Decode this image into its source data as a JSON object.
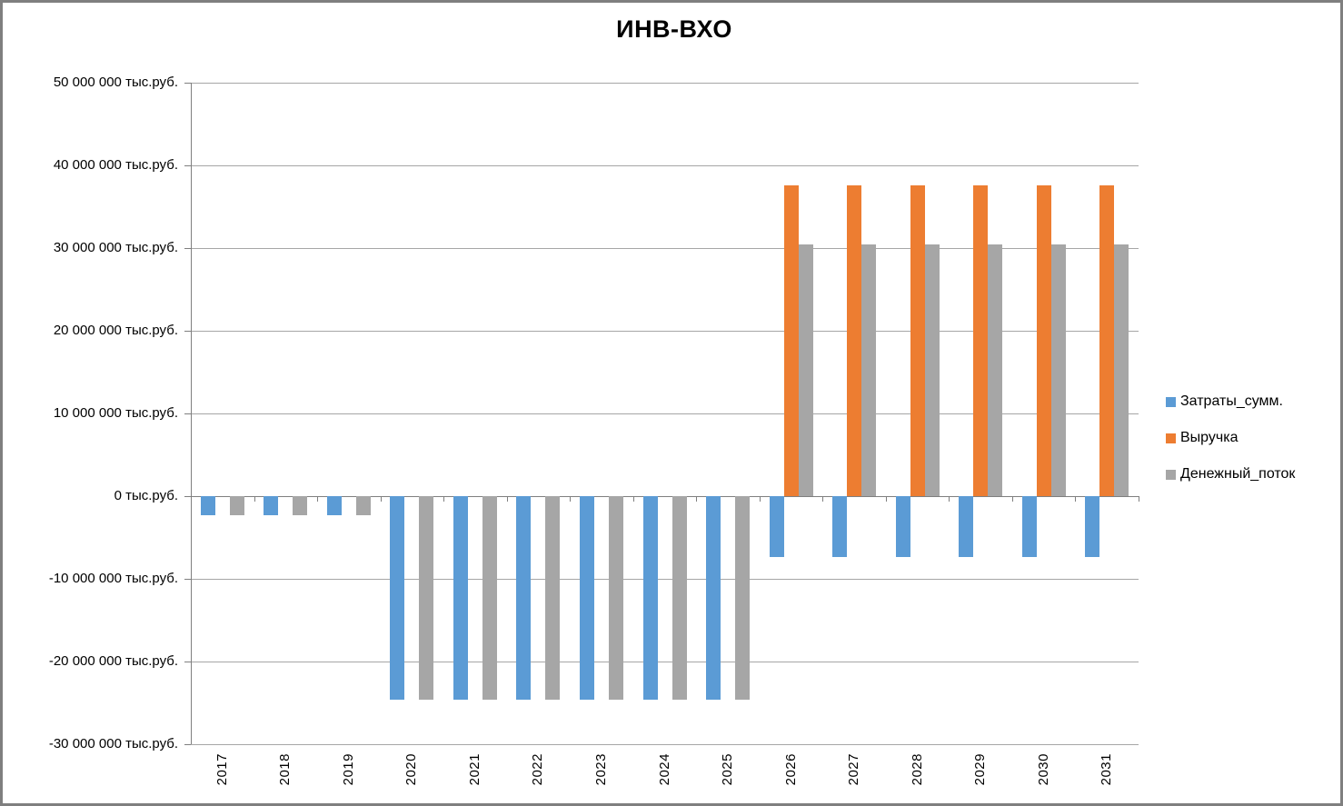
{
  "chart_data": {
    "type": "bar",
    "title": "ИНВ-ВХО",
    "unit_suffix": "тыс.руб.",
    "categories": [
      "2017",
      "2018",
      "2019",
      "2020",
      "2021",
      "2022",
      "2023",
      "2024",
      "2025",
      "2026",
      "2027",
      "2028",
      "2029",
      "2030",
      "2031"
    ],
    "series": [
      {
        "name": "Затраты_сумм.",
        "color": "#5B9BD5",
        "values": [
          -2300000,
          -2300000,
          -2300000,
          -24600000,
          -24600000,
          -24600000,
          -24600000,
          -24600000,
          -24600000,
          -7400000,
          -7400000,
          -7400000,
          -7400000,
          -7400000,
          -7400000
        ]
      },
      {
        "name": "Выручка",
        "color": "#ED7D31",
        "values": [
          0,
          0,
          0,
          0,
          0,
          0,
          0,
          0,
          0,
          37600000,
          37600000,
          37600000,
          37600000,
          37600000,
          37600000
        ]
      },
      {
        "name": "Денежный_поток",
        "color": "#A6A6A6",
        "values": [
          -2300000,
          -2300000,
          -2300000,
          -24600000,
          -24600000,
          -24600000,
          -24600000,
          -24600000,
          -24600000,
          30400000,
          30400000,
          30400000,
          30400000,
          30400000,
          30400000
        ]
      }
    ],
    "y_axis": {
      "min": -30000000,
      "max": 50000000,
      "step": 10000000,
      "tick_labels": [
        "50 000 000 тыс.руб.",
        "40 000 000 тыс.руб.",
        "30 000 000 тыс.руб.",
        "20 000 000 тыс.руб.",
        "10 000 000 тыс.руб.",
        "0 тыс.руб.",
        "-10 000 000 тыс.руб.",
        "-20 000 000 тыс.руб.",
        "-30 000 000 тыс.руб."
      ]
    },
    "grid": true,
    "legend_position": "right",
    "colors": {
      "gridline": "#A6A6A6",
      "axis": "#7F7F7F",
      "frame_border": "#7F7F7F",
      "text": "#000000"
    }
  }
}
